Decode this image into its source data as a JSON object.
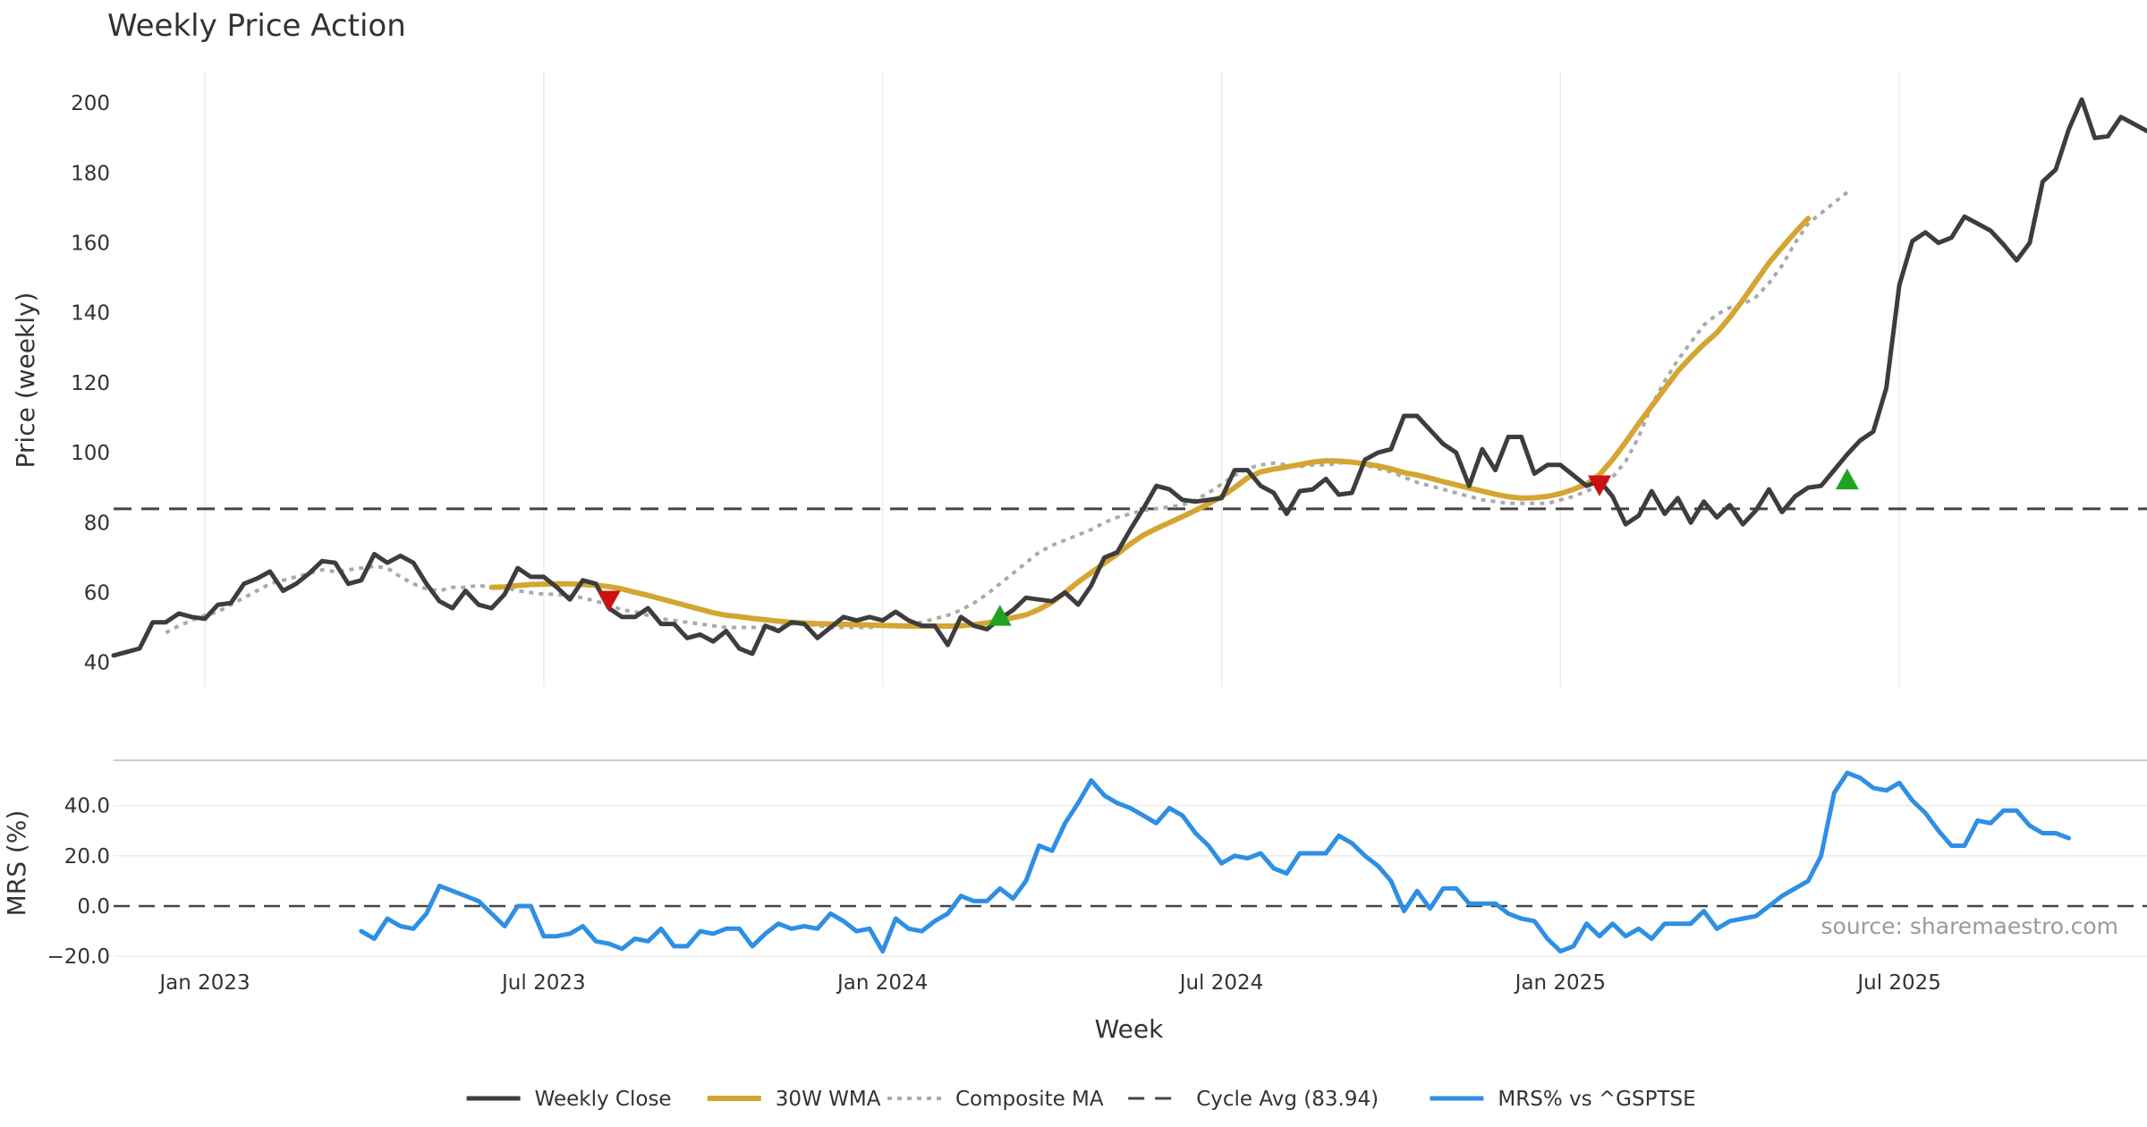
{
  "chart_data": {
    "type": "line",
    "title": "Weekly Price Action",
    "xlabel": "Week",
    "source_note": "source: sharemaestro.com",
    "x_ticks": [
      "Jan 2023",
      "Jul 2023",
      "Jan 2024",
      "Jul 2024",
      "Jan 2025",
      "Jul 2025"
    ],
    "x_tick_weeks": [
      7,
      33,
      59,
      85,
      111,
      137
    ],
    "weeks_count": 157,
    "price_panel": {
      "ylabel": "Price (weekly)",
      "ylim": [
        33,
        209
      ],
      "yticks": [
        "40",
        "60",
        "80",
        "100",
        "120",
        "140",
        "160",
        "180",
        "200"
      ],
      "cycle_avg": 83.94
    },
    "mrs_panel": {
      "ylabel": "MRS (%)",
      "ylim": [
        -21,
        58
      ],
      "yticks": [
        "−20.0",
        "0.0",
        "20.0",
        "40.0"
      ],
      "zero_line": 0
    },
    "series": [
      {
        "name": "Weekly Close",
        "color": "#3d3d3d",
        "start_week": 0,
        "values": [
          42,
          43,
          44,
          51.5,
          51.5,
          54,
          53,
          52.5,
          56.5,
          57,
          62.5,
          64,
          66,
          60.5,
          62.5,
          65.5,
          69,
          68.5,
          62.5,
          63.5,
          71,
          68.5,
          70.5,
          68.5,
          62.5,
          57.5,
          55.5,
          60.5,
          56.5,
          55.5,
          59.5,
          67,
          64.5,
          64.5,
          61.5,
          58,
          63.5,
          62.5,
          55.5,
          53,
          53,
          55.5,
          51,
          51,
          47,
          48,
          46,
          49,
          44,
          42.5,
          50.5,
          49,
          51.5,
          51,
          47,
          50,
          53,
          52,
          53,
          52,
          54.5,
          52,
          50.5,
          50.5,
          45,
          53,
          50.5,
          49.5,
          52.5,
          55,
          58.5,
          58,
          57.5,
          60,
          56.5,
          62,
          70,
          71.5,
          78,
          84,
          90.5,
          89.5,
          86.5,
          86,
          86.5,
          87,
          95,
          95,
          90.5,
          88.5,
          82.5,
          89,
          89.5,
          92.5,
          88,
          88.5,
          98,
          100,
          101,
          110.5,
          110.5,
          106.5,
          102.5,
          100,
          90.5,
          101,
          95,
          104.5,
          104.5,
          94,
          96.5,
          96.5,
          93.5,
          90.5,
          92,
          87.5,
          79.5,
          82,
          89,
          82.5,
          87,
          80,
          86,
          81.5,
          85,
          79.5,
          83.5,
          89.5,
          83,
          87.5,
          90,
          90.5,
          95,
          99.5,
          103.5,
          106,
          118.5,
          148,
          160.5,
          163,
          160,
          161.5,
          167.5,
          165.5,
          163.5,
          159.5,
          155,
          160,
          177.5,
          181,
          192.5,
          201,
          190,
          190.5,
          196,
          194,
          192
        ]
      },
      {
        "name": "30W WMA",
        "color": "#d4a532",
        "start_week": 29,
        "values": [
          61.5,
          61.6,
          62,
          62.3,
          62.4,
          62.5,
          62.5,
          62.3,
          62.1,
          61.7,
          61,
          60.1,
          59.2,
          58.2,
          57.2,
          56.2,
          55.2,
          54.2,
          53.5,
          53.1,
          52.6,
          52.2,
          51.8,
          51.5,
          51.3,
          51.1,
          51,
          50.9,
          50.8,
          50.7,
          50.6,
          50.5,
          50.4,
          50.4,
          50.4,
          50.4,
          50.5,
          50.8,
          51.3,
          52,
          52.8,
          53.6,
          55.2,
          57.2,
          60,
          63,
          65.7,
          68.4,
          71,
          73.9,
          76.4,
          78.3,
          80,
          81.7,
          83.5,
          85.4,
          87.4,
          90,
          92.8,
          94.5,
          95.3,
          95.9,
          96.6,
          97.3,
          97.7,
          97.6,
          97.3,
          96.8,
          96.2,
          95.4,
          94.3,
          93.6,
          92.7,
          91.7,
          90.8,
          89.9,
          89,
          88.1,
          87.4,
          87,
          87.1,
          87.5,
          88.3,
          89.5,
          91,
          93.7,
          98,
          103,
          108.3,
          113.3,
          118.3,
          123.3,
          127.3,
          131,
          134.3,
          138.7,
          143.7,
          149,
          154.3,
          158.7,
          163,
          167
        ]
      },
      {
        "name": "Composite MA",
        "color": "#aaaaaa",
        "start_week": 4,
        "values": [
          48.5,
          50.5,
          52,
          53.5,
          54.5,
          56.5,
          58.5,
          60.5,
          62.5,
          63.5,
          64.5,
          65.5,
          66.5,
          66,
          66.5,
          67,
          67.5,
          67,
          64.5,
          62.5,
          61,
          60.5,
          61.5,
          61.5,
          62,
          61.5,
          61.5,
          60.5,
          60,
          59.5,
          59.5,
          59,
          58.5,
          57.5,
          56.5,
          55,
          54.5,
          53.5,
          52.5,
          52,
          51.5,
          51,
          50.5,
          50,
          50,
          50,
          50,
          50,
          51,
          51,
          50.5,
          50,
          50,
          50,
          50,
          50.5,
          50.5,
          51,
          51.5,
          52.5,
          53.5,
          55,
          57,
          59.5,
          62.5,
          65.5,
          68.5,
          71.5,
          73.5,
          75,
          76.5,
          78,
          80,
          81.5,
          82.5,
          83.5,
          84,
          84.5,
          85,
          86.5,
          88.5,
          91,
          93.5,
          95.5,
          96.5,
          97,
          96.5,
          96,
          96.5,
          96.5,
          97,
          97.5,
          96.5,
          95.5,
          94.5,
          93,
          91.5,
          90.5,
          89.5,
          88.5,
          87.5,
          86.5,
          86,
          85.5,
          85.5,
          85.5,
          85.5,
          86.5,
          87.5,
          89,
          90.5,
          93,
          97.5,
          104.5,
          113.5,
          120.5,
          126.5,
          131.5,
          136.5,
          139.5,
          141.5,
          142.5,
          144.5,
          148.5,
          153.5,
          160,
          165.5,
          168.5,
          171.5,
          174.5
        ]
      },
      {
        "name": "Cycle Avg (83.94)",
        "color": "#444444"
      },
      {
        "name": "MRS% vs ^GSPTSE",
        "color": "#2e8fe4",
        "start_week": 19,
        "values": [
          -10,
          -13,
          -5,
          -8,
          -9,
          -3,
          8,
          6,
          4,
          2,
          -3,
          -8,
          0,
          0,
          -12,
          -12,
          -11,
          -8,
          -14,
          -15,
          -17,
          -13,
          -14,
          -9,
          -16,
          -16,
          -10,
          -11,
          -9,
          -9,
          -16,
          -11,
          -7,
          -9,
          -8,
          -9,
          -3,
          -6,
          -10,
          -9,
          -18,
          -5,
          -9,
          -10,
          -6,
          -3,
          4,
          2,
          2,
          7,
          3,
          10,
          24,
          22,
          33,
          41,
          50,
          44,
          41,
          39,
          36,
          33,
          39,
          36,
          29,
          24,
          17,
          20,
          19,
          21,
          15,
          13,
          21,
          21,
          21,
          28,
          25,
          20,
          16,
          10,
          -2,
          6,
          -1,
          7,
          7,
          1,
          1,
          1,
          -3,
          -5,
          -6,
          -13,
          -18,
          -16,
          -7,
          -12,
          -7,
          -12,
          -9,
          -13,
          -7,
          -7,
          -7,
          -2,
          -9,
          -6,
          -5,
          -4,
          0,
          4,
          7,
          10,
          20,
          45,
          53,
          51,
          47,
          46,
          49,
          42,
          37,
          30,
          24,
          24,
          34,
          33,
          38,
          38,
          32,
          29,
          29,
          27
        ]
      }
    ],
    "markers": [
      {
        "type": "sell",
        "week": 38,
        "value": 58,
        "color": "#cc1111"
      },
      {
        "type": "buy",
        "week": 68,
        "value": 53,
        "color": "#21a321"
      },
      {
        "type": "sell",
        "week": 114,
        "value": 91,
        "color": "#cc1111"
      },
      {
        "type": "buy",
        "week": 133,
        "value": 92,
        "color": "#21a321"
      }
    ]
  }
}
